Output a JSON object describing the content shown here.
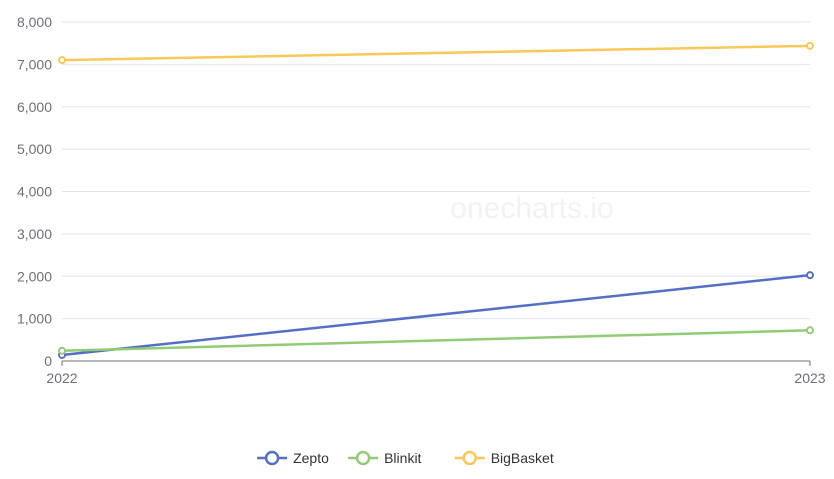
{
  "watermark": "onecharts.io",
  "colors": {
    "grid": "#e0e6f1",
    "axis": "#6e7079",
    "text": "#6e7079"
  },
  "chart_data": {
    "type": "line",
    "x": [
      "2022",
      "2023"
    ],
    "ylim": [
      0,
      8000
    ],
    "yticks": [
      0,
      1000,
      2000,
      3000,
      4000,
      5000,
      6000,
      7000,
      8000
    ],
    "ytick_labels": [
      "0",
      "1,000",
      "2,000",
      "3,000",
      "4,000",
      "5,000",
      "6,000",
      "7,000",
      "8,000"
    ],
    "grid": true,
    "legend_position": "bottom-center",
    "series": [
      {
        "name": "Zepto",
        "color": "#5470c6",
        "values": [
          142,
          2026
        ]
      },
      {
        "name": "Blinkit",
        "color": "#91cc75",
        "values": [
          241,
          725
        ]
      },
      {
        "name": "BigBasket",
        "color": "#fac858",
        "values": [
          7100,
          7437
        ]
      }
    ]
  }
}
